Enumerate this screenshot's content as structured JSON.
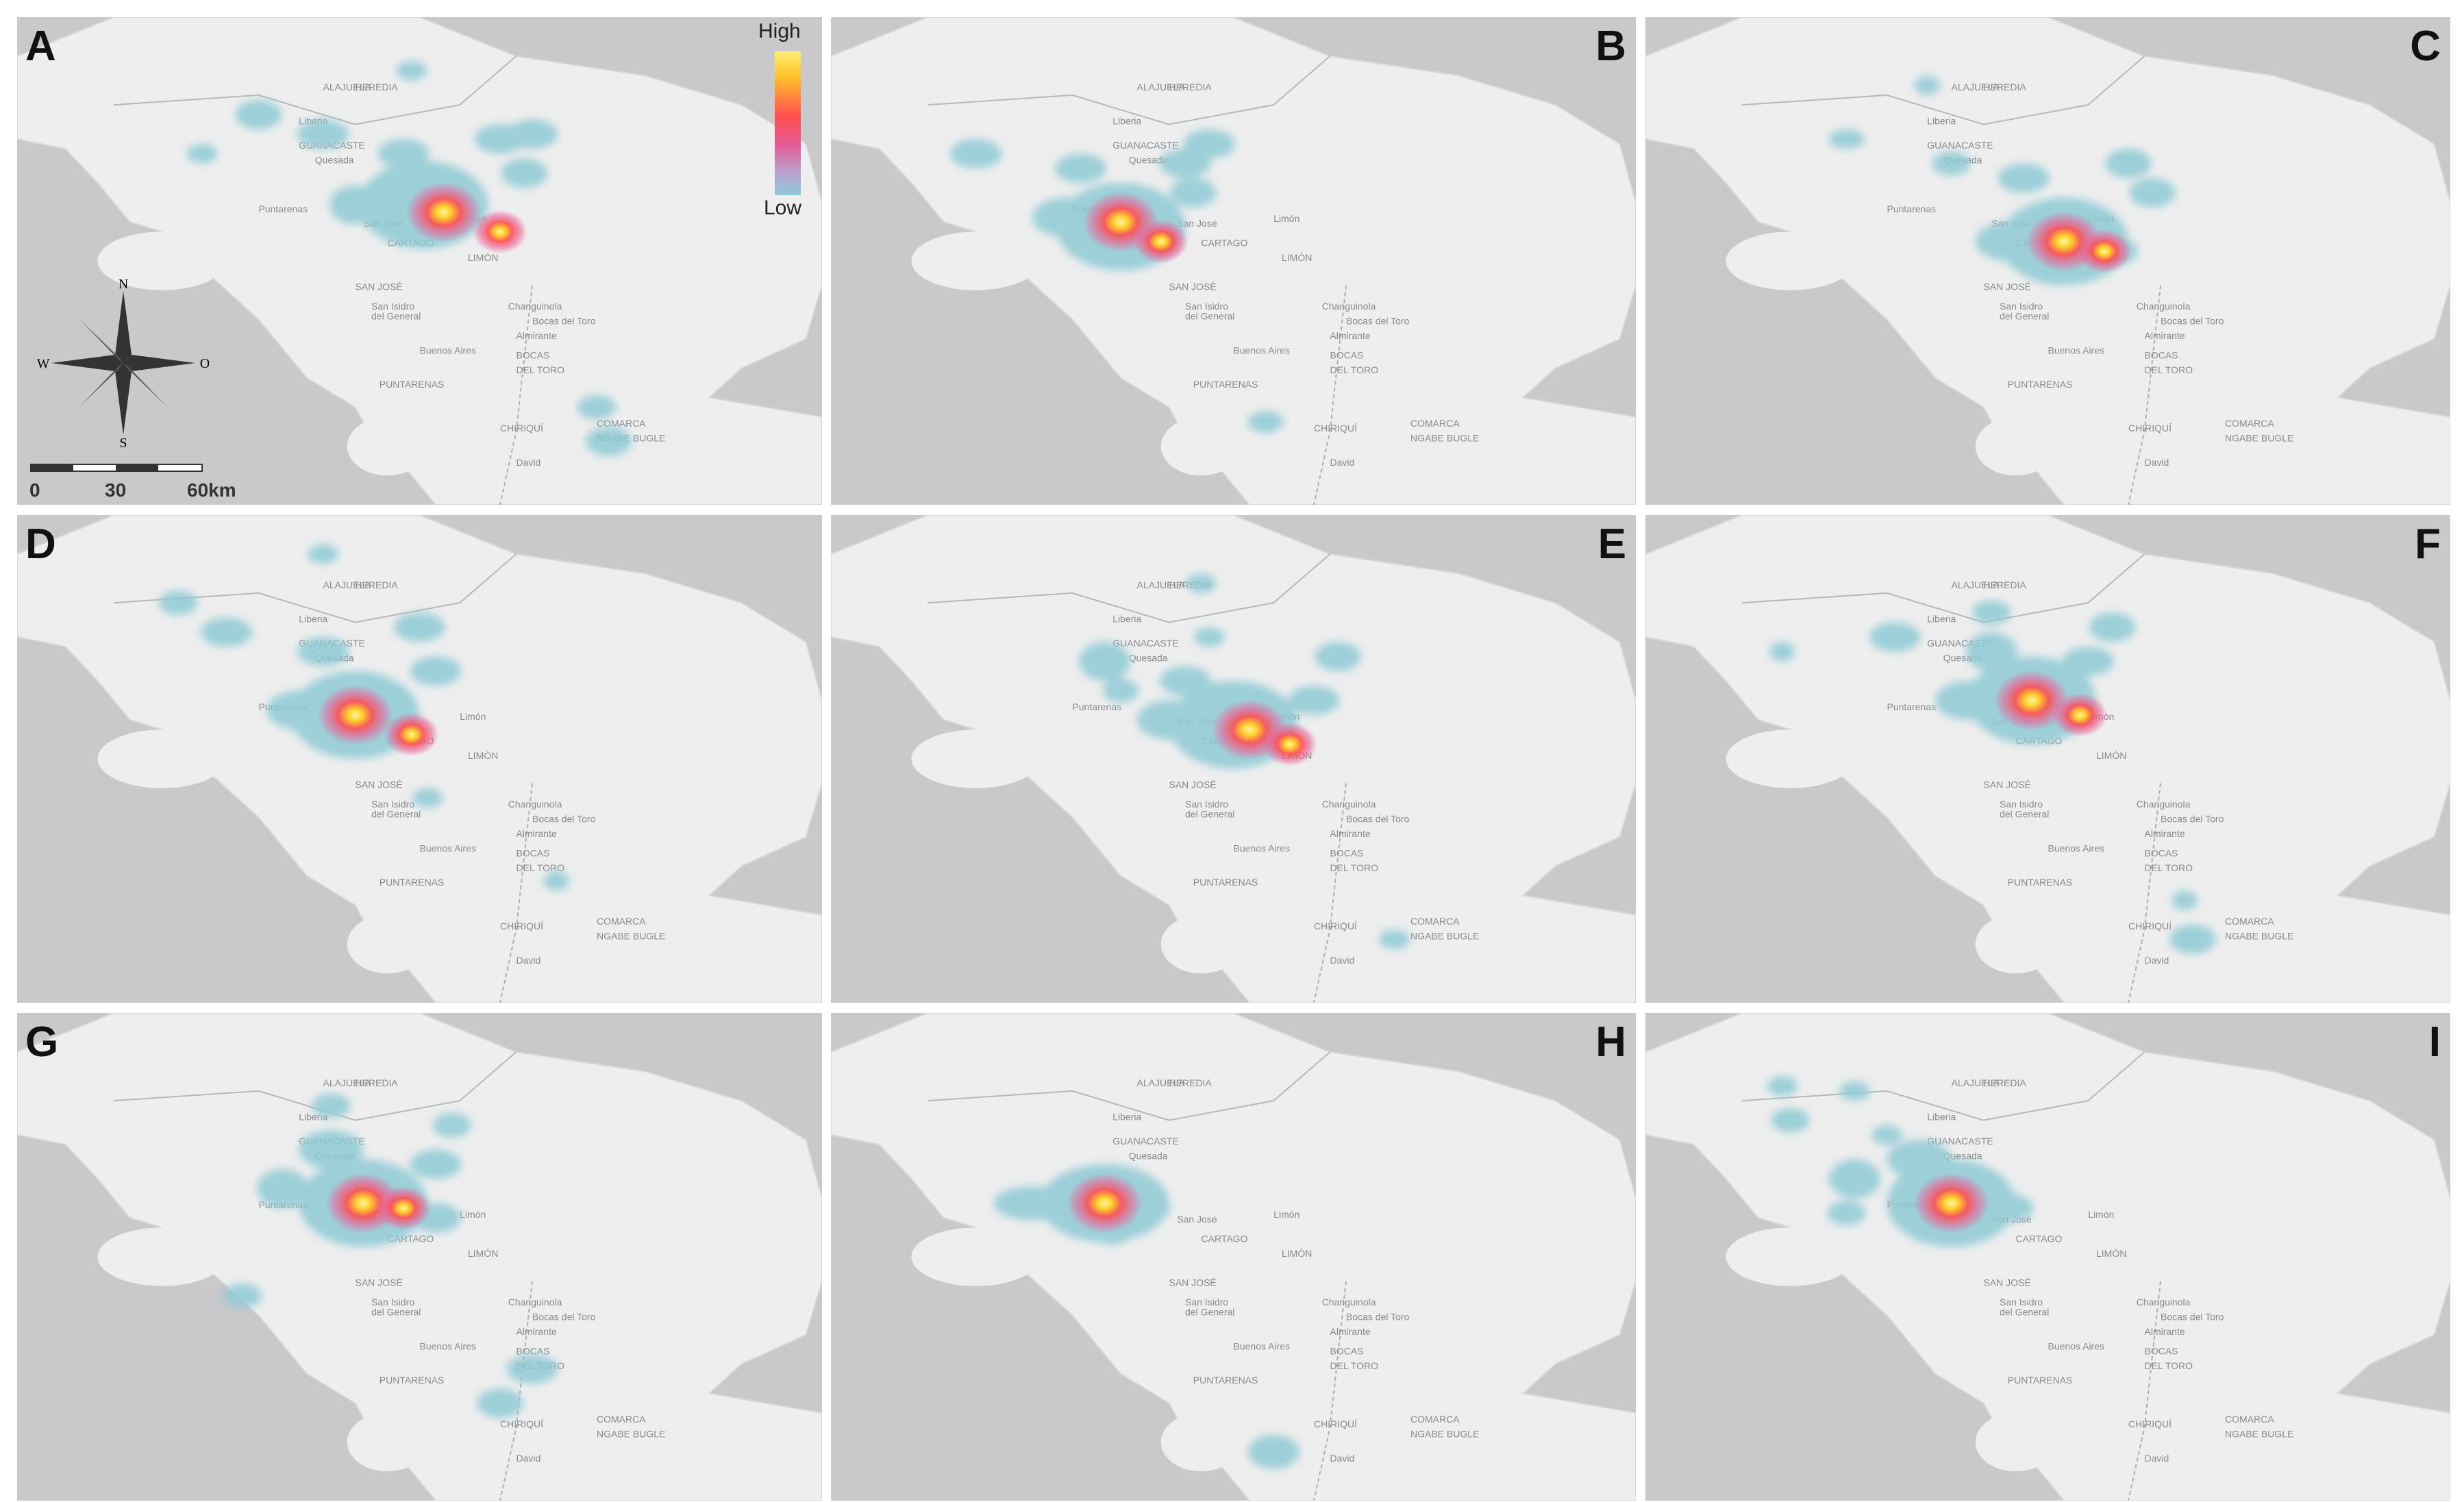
{
  "panels": [
    {
      "label": "A",
      "bias": 0,
      "blobs": [
        [
          0.505,
          0.385,
          0.05,
          0.09,
          true
        ],
        [
          0.505,
          0.345,
          0.022,
          0.045,
          false
        ],
        [
          0.42,
          0.385,
          0.02,
          0.04,
          false
        ],
        [
          0.6,
          0.25,
          0.02,
          0.03,
          false
        ],
        [
          0.63,
          0.32,
          0.018,
          0.03,
          false
        ],
        [
          0.48,
          0.28,
          0.02,
          0.03,
          false
        ],
        [
          0.38,
          0.24,
          0.02,
          0.03,
          false
        ],
        [
          0.3,
          0.2,
          0.018,
          0.03,
          false
        ],
        [
          0.23,
          0.28,
          0.012,
          0.02,
          false
        ],
        [
          0.49,
          0.11,
          0.012,
          0.02,
          false
        ],
        [
          0.64,
          0.24,
          0.02,
          0.03,
          false
        ],
        [
          0.72,
          0.8,
          0.015,
          0.025,
          false
        ],
        [
          0.735,
          0.87,
          0.018,
          0.03,
          false
        ]
      ],
      "hot": [
        [
          0.53,
          0.4
        ],
        [
          0.6,
          0.44
        ]
      ]
    },
    {
      "label": "B",
      "bias": 0,
      "blobs": [
        [
          0.36,
          0.43,
          0.05,
          0.09,
          true
        ],
        [
          0.29,
          0.41,
          0.025,
          0.04,
          false
        ],
        [
          0.31,
          0.31,
          0.02,
          0.03,
          false
        ],
        [
          0.44,
          0.3,
          0.02,
          0.03,
          false
        ],
        [
          0.45,
          0.36,
          0.018,
          0.03,
          false
        ],
        [
          0.18,
          0.28,
          0.02,
          0.03,
          false
        ],
        [
          0.47,
          0.26,
          0.02,
          0.03,
          false
        ],
        [
          0.54,
          0.83,
          0.014,
          0.022,
          false
        ]
      ],
      "hot": [
        [
          0.36,
          0.42
        ],
        [
          0.41,
          0.46
        ]
      ]
    },
    {
      "label": "C",
      "bias": 0,
      "blobs": [
        [
          0.52,
          0.46,
          0.05,
          0.09,
          true
        ],
        [
          0.45,
          0.46,
          0.025,
          0.04,
          false
        ],
        [
          0.47,
          0.33,
          0.02,
          0.03,
          false
        ],
        [
          0.38,
          0.3,
          0.015,
          0.025,
          false
        ],
        [
          0.6,
          0.3,
          0.018,
          0.03,
          false
        ],
        [
          0.63,
          0.36,
          0.018,
          0.03,
          false
        ],
        [
          0.25,
          0.25,
          0.014,
          0.02,
          false
        ],
        [
          0.35,
          0.14,
          0.01,
          0.02,
          false
        ],
        [
          0.58,
          0.48,
          0.02,
          0.03,
          false
        ]
      ],
      "hot": [
        [
          0.52,
          0.46
        ],
        [
          0.57,
          0.48
        ]
      ]
    },
    {
      "label": "D",
      "bias": 0,
      "blobs": [
        [
          0.42,
          0.41,
          0.05,
          0.09,
          true
        ],
        [
          0.35,
          0.4,
          0.025,
          0.04,
          false
        ],
        [
          0.38,
          0.28,
          0.02,
          0.03,
          false
        ],
        [
          0.5,
          0.23,
          0.02,
          0.03,
          false
        ],
        [
          0.52,
          0.32,
          0.02,
          0.03,
          false
        ],
        [
          0.26,
          0.24,
          0.02,
          0.03,
          false
        ],
        [
          0.2,
          0.18,
          0.015,
          0.025,
          false
        ],
        [
          0.38,
          0.08,
          0.012,
          0.02,
          false
        ],
        [
          0.51,
          0.58,
          0.012,
          0.02,
          false
        ],
        [
          0.67,
          0.75,
          0.01,
          0.02,
          false
        ]
      ],
      "hot": [
        [
          0.42,
          0.41
        ],
        [
          0.49,
          0.45
        ]
      ]
    },
    {
      "label": "E",
      "bias": 0,
      "blobs": [
        [
          0.5,
          0.43,
          0.05,
          0.09,
          true
        ],
        [
          0.42,
          0.42,
          0.025,
          0.04,
          false
        ],
        [
          0.44,
          0.34,
          0.02,
          0.03,
          false
        ],
        [
          0.34,
          0.3,
          0.02,
          0.04,
          false
        ],
        [
          0.6,
          0.38,
          0.02,
          0.03,
          false
        ],
        [
          0.63,
          0.29,
          0.018,
          0.03,
          false
        ],
        [
          0.47,
          0.25,
          0.012,
          0.02,
          false
        ],
        [
          0.46,
          0.14,
          0.012,
          0.02,
          false
        ],
        [
          0.7,
          0.87,
          0.012,
          0.02,
          false
        ],
        [
          0.36,
          0.36,
          0.014,
          0.025,
          false
        ]
      ],
      "hot": [
        [
          0.52,
          0.44
        ],
        [
          0.57,
          0.47
        ]
      ]
    },
    {
      "label": "F",
      "bias": 0,
      "blobs": [
        [
          0.48,
          0.38,
          0.05,
          0.09,
          true
        ],
        [
          0.4,
          0.38,
          0.025,
          0.04,
          false
        ],
        [
          0.43,
          0.28,
          0.02,
          0.04,
          false
        ],
        [
          0.43,
          0.2,
          0.015,
          0.025,
          false
        ],
        [
          0.55,
          0.3,
          0.02,
          0.03,
          false
        ],
        [
          0.58,
          0.23,
          0.018,
          0.03,
          false
        ],
        [
          0.31,
          0.25,
          0.02,
          0.03,
          false
        ],
        [
          0.17,
          0.28,
          0.01,
          0.02,
          false
        ],
        [
          0.67,
          0.79,
          0.01,
          0.02,
          false
        ],
        [
          0.68,
          0.87,
          0.018,
          0.03,
          false
        ]
      ],
      "hot": [
        [
          0.48,
          0.38
        ],
        [
          0.54,
          0.41
        ]
      ]
    },
    {
      "label": "G",
      "bias": 0,
      "blobs": [
        [
          0.43,
          0.39,
          0.05,
          0.09,
          true
        ],
        [
          0.33,
          0.36,
          0.02,
          0.04,
          false
        ],
        [
          0.39,
          0.28,
          0.025,
          0.04,
          false
        ],
        [
          0.39,
          0.19,
          0.015,
          0.025,
          false
        ],
        [
          0.52,
          0.31,
          0.02,
          0.03,
          false
        ],
        [
          0.54,
          0.23,
          0.015,
          0.025,
          false
        ],
        [
          0.52,
          0.42,
          0.02,
          0.03,
          false
        ],
        [
          0.28,
          0.58,
          0.015,
          0.025,
          false
        ],
        [
          0.64,
          0.73,
          0.02,
          0.03,
          false
        ],
        [
          0.6,
          0.8,
          0.018,
          0.03,
          false
        ]
      ],
      "hot": [
        [
          0.43,
          0.39
        ],
        [
          0.48,
          0.4
        ]
      ]
    },
    {
      "label": "H",
      "bias": 0,
      "blobs": [
        [
          0.34,
          0.39,
          0.05,
          0.08,
          true
        ],
        [
          0.25,
          0.39,
          0.03,
          0.035,
          false
        ],
        [
          0.39,
          0.4,
          0.02,
          0.03,
          false
        ],
        [
          0.35,
          0.45,
          0.015,
          0.025,
          false
        ],
        [
          0.55,
          0.9,
          0.02,
          0.035,
          false
        ]
      ],
      "hot": [
        [
          0.34,
          0.39
        ]
      ]
    },
    {
      "label": "I",
      "bias": 0,
      "blobs": [
        [
          0.38,
          0.39,
          0.05,
          0.09,
          true
        ],
        [
          0.34,
          0.3,
          0.025,
          0.04,
          false
        ],
        [
          0.26,
          0.34,
          0.02,
          0.04,
          false
        ],
        [
          0.25,
          0.41,
          0.015,
          0.025,
          false
        ],
        [
          0.17,
          0.15,
          0.012,
          0.02,
          false
        ],
        [
          0.26,
          0.16,
          0.012,
          0.02,
          false
        ],
        [
          0.18,
          0.22,
          0.015,
          0.025,
          false
        ],
        [
          0.3,
          0.25,
          0.012,
          0.02,
          false
        ],
        [
          0.45,
          0.4,
          0.02,
          0.03,
          false
        ]
      ],
      "hot": [
        [
          0.38,
          0.39
        ]
      ]
    }
  ],
  "legend": {
    "high": "High",
    "low": "Low"
  },
  "compass": {
    "n": "N",
    "s": "S",
    "w": "W",
    "e": "O"
  },
  "scale": {
    "t0": "0",
    "t1": "30",
    "t2": "60km"
  },
  "places": [
    [
      "Liberia",
      0.35,
      0.22
    ],
    [
      "GUANACASTE",
      0.35,
      0.27
    ],
    [
      "ALAJUELA",
      0.38,
      0.15
    ],
    [
      "HEREDIA",
      0.42,
      0.15
    ],
    [
      "Quesada",
      0.37,
      0.3
    ],
    [
      "Puntarenas",
      0.3,
      0.4
    ],
    [
      "San José",
      0.43,
      0.43
    ],
    [
      "CARTAGO",
      0.46,
      0.47
    ],
    [
      "Limón",
      0.55,
      0.42
    ],
    [
      "LIMÓN",
      0.56,
      0.5
    ],
    [
      "SAN JOSÉ",
      0.42,
      0.56
    ],
    [
      "San Isidro",
      0.44,
      0.6
    ],
    [
      "del General",
      0.44,
      0.62
    ],
    [
      "Changuinola",
      0.61,
      0.6
    ],
    [
      "Bocas del Toro",
      0.64,
      0.63
    ],
    [
      "Almirante",
      0.62,
      0.66
    ],
    [
      "Buenos Aires",
      0.5,
      0.69
    ],
    [
      "BOCAS",
      0.62,
      0.7
    ],
    [
      "DEL TORO",
      0.62,
      0.73
    ],
    [
      "PUNTARENAS",
      0.45,
      0.76
    ],
    [
      "CHIRIQUÍ",
      0.6,
      0.85
    ],
    [
      "COMARCA",
      0.72,
      0.84
    ],
    [
      "NGABE BUGLE",
      0.72,
      0.87
    ],
    [
      "David",
      0.62,
      0.92
    ]
  ]
}
